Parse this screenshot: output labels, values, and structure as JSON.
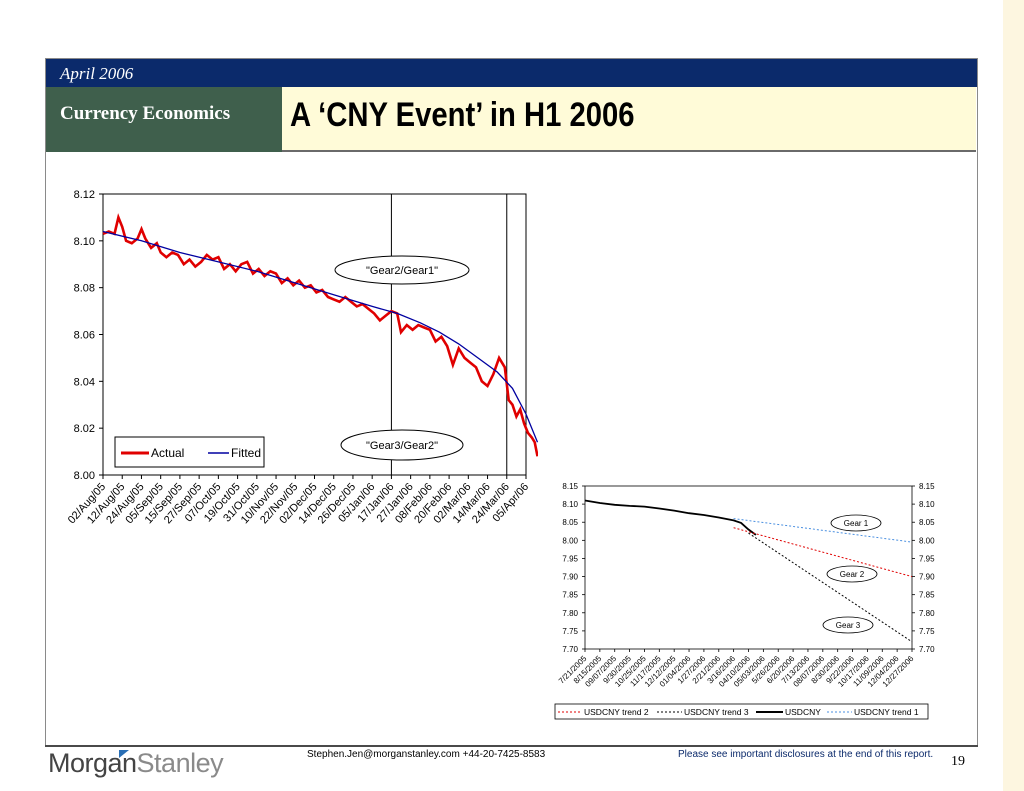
{
  "header": {
    "date": "April 2006",
    "section": "Currency Economics",
    "title": "A ‘CNY Event’ in H1 2006"
  },
  "footer": {
    "logo_left": "Morgan",
    "logo_right": "Stanley",
    "contact": "Stephen.Jen@morganstanley.com +44-20-7425-8583",
    "disclosure": "Please see  important disclosures at the end of this report.",
    "page": "19"
  },
  "colors": {
    "navy": "#0b2a6b",
    "green": "#3f5f4c",
    "title_bg": "#fffbd8",
    "actual": "#e00000",
    "fitted": "#0000a0"
  },
  "chart_data": [
    {
      "type": "line",
      "ylim": [
        8.0,
        8.12
      ],
      "yticks": [
        "8.12",
        "8.10",
        "8.08",
        "8.06",
        "8.04",
        "8.02",
        "8.00"
      ],
      "xtick_labels": [
        "02/Aug/05",
        "12/Aug/05",
        "24/Aug/05",
        "05/Sep/05",
        "15/Sep/05",
        "27/Sep/05",
        "07/Oct/05",
        "19/Oct/05",
        "31/Oct/05",
        "10/Nov/05",
        "22/Nov/05",
        "02/Dec/05",
        "14/Dec/05",
        "26/Dec/05",
        "05/Jan/06",
        "17/Jan/06",
        "27/Jan/06",
        "08/Feb/06",
        "20/Feb/06",
        "02/Mar/06",
        "14/Mar/06",
        "24/Mar/06",
        "05/Apr/06"
      ],
      "legend": [
        "Actual",
        "Fitted"
      ],
      "legend_position": "bottom-left",
      "annotations": [
        "\"Gear2/Gear1\"",
        "\"Gear3/Gear2\""
      ],
      "vertical_lines_at": [
        "17/Jan/06",
        "24/Mar/06"
      ],
      "series": [
        {
          "name": "Actual",
          "color": "#e00000",
          "points": [
            [
              0,
              8.103
            ],
            [
              0.3,
              8.104
            ],
            [
              0.6,
              8.103
            ],
            [
              0.8,
              8.11
            ],
            [
              1.0,
              8.106
            ],
            [
              1.2,
              8.1
            ],
            [
              1.5,
              8.099
            ],
            [
              1.8,
              8.101
            ],
            [
              2.0,
              8.105
            ],
            [
              2.2,
              8.101
            ],
            [
              2.5,
              8.097
            ],
            [
              2.8,
              8.099
            ],
            [
              3.0,
              8.095
            ],
            [
              3.3,
              8.093
            ],
            [
              3.6,
              8.095
            ],
            [
              3.9,
              8.094
            ],
            [
              4.2,
              8.09
            ],
            [
              4.5,
              8.092
            ],
            [
              4.8,
              8.089
            ],
            [
              5.1,
              8.091
            ],
            [
              5.4,
              8.094
            ],
            [
              5.7,
              8.092
            ],
            [
              6.0,
              8.093
            ],
            [
              6.3,
              8.088
            ],
            [
              6.6,
              8.09
            ],
            [
              6.9,
              8.087
            ],
            [
              7.2,
              8.09
            ],
            [
              7.5,
              8.091
            ],
            [
              7.8,
              8.086
            ],
            [
              8.1,
              8.088
            ],
            [
              8.4,
              8.085
            ],
            [
              8.7,
              8.087
            ],
            [
              9.0,
              8.086
            ],
            [
              9.3,
              8.082
            ],
            [
              9.6,
              8.084
            ],
            [
              9.9,
              8.081
            ],
            [
              10.2,
              8.083
            ],
            [
              10.5,
              8.08
            ],
            [
              10.8,
              8.081
            ],
            [
              11.1,
              8.078
            ],
            [
              11.4,
              8.079
            ],
            [
              11.7,
              8.076
            ],
            [
              12.0,
              8.075
            ],
            [
              12.3,
              8.074
            ],
            [
              12.6,
              8.076
            ],
            [
              12.9,
              8.074
            ],
            [
              13.2,
              8.072
            ],
            [
              13.5,
              8.073
            ],
            [
              13.8,
              8.071
            ],
            [
              14.1,
              8.069
            ],
            [
              14.4,
              8.066
            ],
            [
              14.7,
              8.068
            ],
            [
              15.0,
              8.07
            ],
            [
              15.3,
              8.069
            ],
            [
              15.5,
              8.061
            ],
            [
              15.8,
              8.064
            ],
            [
              16.1,
              8.062
            ],
            [
              16.4,
              8.064
            ],
            [
              16.7,
              8.063
            ],
            [
              17.0,
              8.062
            ],
            [
              17.3,
              8.057
            ],
            [
              17.6,
              8.059
            ],
            [
              17.9,
              8.055
            ],
            [
              18.2,
              8.047
            ],
            [
              18.5,
              8.054
            ],
            [
              18.8,
              8.05
            ],
            [
              19.1,
              8.048
            ],
            [
              19.4,
              8.046
            ],
            [
              19.7,
              8.04
            ],
            [
              20.0,
              8.038
            ],
            [
              20.3,
              8.043
            ],
            [
              20.6,
              8.05
            ],
            [
              20.9,
              8.046
            ],
            [
              21.1,
              8.032
            ],
            [
              21.3,
              8.03
            ],
            [
              21.5,
              8.025
            ],
            [
              21.7,
              8.028
            ],
            [
              21.9,
              8.022
            ],
            [
              22.1,
              8.018
            ],
            [
              22.3,
              8.016
            ],
            [
              22.45,
              8.014
            ],
            [
              22.6,
              8.008
            ]
          ]
        },
        {
          "name": "Fitted",
          "color": "#0000a0",
          "points": [
            [
              0,
              8.104
            ],
            [
              2,
              8.1
            ],
            [
              4,
              8.095
            ],
            [
              6,
              8.091
            ],
            [
              8,
              8.087
            ],
            [
              10,
              8.082
            ],
            [
              12,
              8.077
            ],
            [
              14,
              8.072
            ],
            [
              15.3,
              8.069
            ],
            [
              16.5,
              8.065
            ],
            [
              17.5,
              8.061
            ],
            [
              18.5,
              8.056
            ],
            [
              19.5,
              8.05
            ],
            [
              20.5,
              8.044
            ],
            [
              21.3,
              8.037
            ],
            [
              22.0,
              8.026
            ],
            [
              22.6,
              8.014
            ]
          ]
        }
      ]
    },
    {
      "type": "line",
      "ylim": [
        7.7,
        8.15
      ],
      "yticks": [
        "8.15",
        "8.10",
        "8.05",
        "8.00",
        "7.95",
        "7.90",
        "7.85",
        "7.80",
        "7.75",
        "7.70"
      ],
      "xtick_labels": [
        "7/21/2005",
        "8/15/2005",
        "09/07/2005",
        "9/30/2005",
        "10/25/2005",
        "11/17/2005",
        "12/12/2005",
        "01/04/2006",
        "1/27/2006",
        "2/21/2006",
        "3/16/2006",
        "04/10/2006",
        "05/03/2006",
        "5/26/2006",
        "6/20/2006",
        "7/13/2006",
        "08/07/2006",
        "8/30/2006",
        "9/22/2006",
        "10/17/2006",
        "11/09/2006",
        "12/04/2006",
        "12/27/2006"
      ],
      "legend": [
        "USDCNY trend 2",
        "USDCNY trend 3",
        "USDCNY",
        "USDCNY trend 1"
      ],
      "legend_position": "bottom",
      "annotations": [
        "Gear 1",
        "Gear 2",
        "Gear 3"
      ],
      "series": [
        {
          "name": "USDCNY",
          "color": "#000000",
          "points": [
            [
              0,
              8.11
            ],
            [
              1,
              8.103
            ],
            [
              2,
              8.098
            ],
            [
              3,
              8.095
            ],
            [
              4,
              8.093
            ],
            [
              5,
              8.088
            ],
            [
              6,
              8.082
            ],
            [
              7,
              8.075
            ],
            [
              8,
              8.07
            ],
            [
              9,
              8.063
            ],
            [
              10,
              8.055
            ],
            [
              10.5,
              8.048
            ],
            [
              11,
              8.03
            ],
            [
              11.5,
              8.015
            ]
          ]
        },
        {
          "name": "USDCNY trend 1",
          "color": "#4a8fe0",
          "points": [
            [
              10,
              8.06
            ],
            [
              22,
              7.995
            ]
          ]
        },
        {
          "name": "USDCNY trend 2",
          "color": "#e00000",
          "points": [
            [
              10,
              8.035
            ],
            [
              22,
              7.9
            ]
          ]
        },
        {
          "name": "USDCNY trend 3",
          "color": "#000000",
          "points": [
            [
              11,
              8.02
            ],
            [
              22,
              7.72
            ]
          ]
        }
      ]
    }
  ]
}
